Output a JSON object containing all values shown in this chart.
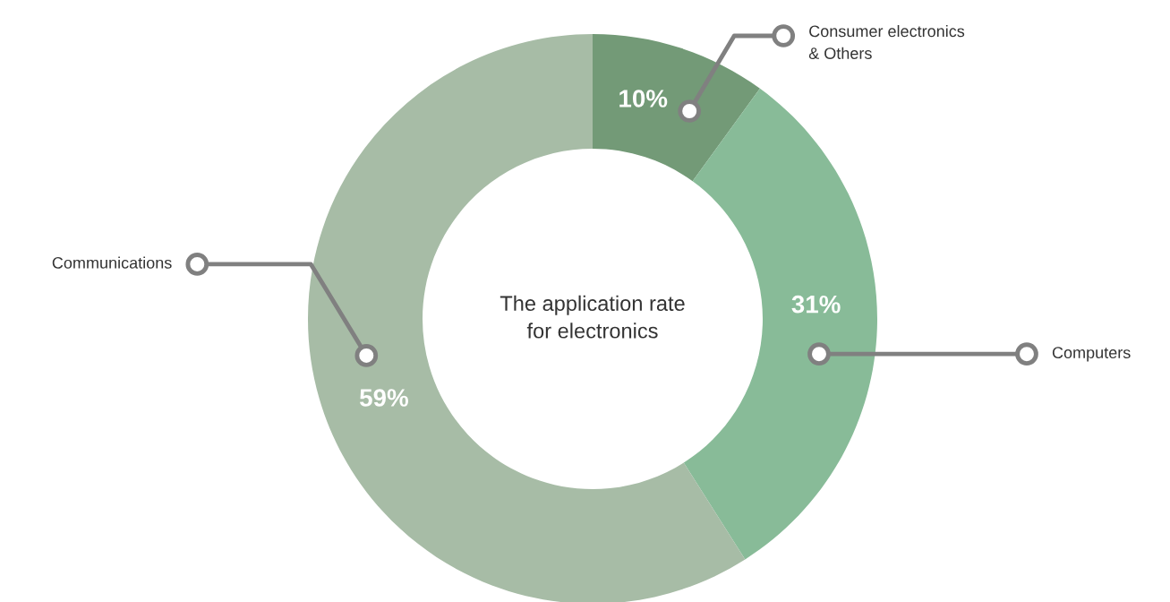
{
  "chart_data": {
    "type": "donut",
    "title": "The application rate\nfor electronics",
    "categories": [
      "Consumer electronics\n& Others",
      "Computers",
      "Communications"
    ],
    "values": [
      10,
      31,
      59
    ],
    "colors": [
      "#739a77",
      "#88bb98",
      "#a7bca6"
    ],
    "value_labels": [
      "10%",
      "31%",
      "59%"
    ]
  }
}
